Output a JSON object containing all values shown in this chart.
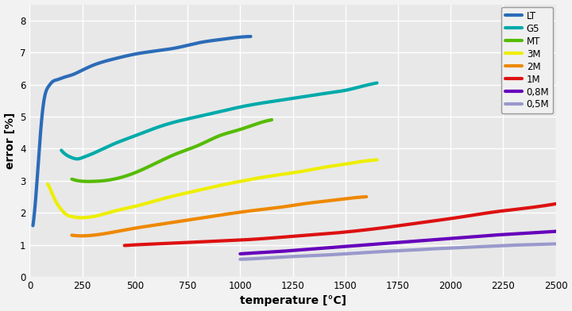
{
  "xlabel": "temperature [°C]",
  "ylabel": "error [%]",
  "xlim": [
    0,
    2500
  ],
  "ylim": [
    0,
    8.5
  ],
  "xticks": [
    0,
    250,
    500,
    750,
    1000,
    1250,
    1500,
    1750,
    2000,
    2250,
    2500
  ],
  "yticks": [
    0,
    1,
    2,
    3,
    4,
    5,
    6,
    7,
    8
  ],
  "plot_bg": "#e8e8e8",
  "fig_bg": "#f2f2f2",
  "grid_color": "#ffffff",
  "series": [
    {
      "label": "LT",
      "color": "#2B6CB8",
      "linewidth": 3.0,
      "x": [
        15,
        25,
        40,
        55,
        70,
        90,
        110,
        130,
        150,
        175,
        200,
        250,
        300,
        400,
        500,
        600,
        700,
        800,
        900,
        1000,
        1050
      ],
      "y": [
        1.6,
        2.2,
        3.5,
        4.8,
        5.6,
        5.95,
        6.1,
        6.15,
        6.2,
        6.25,
        6.3,
        6.45,
        6.6,
        6.8,
        6.95,
        7.05,
        7.15,
        7.3,
        7.4,
        7.48,
        7.5
      ]
    },
    {
      "label": "G5",
      "color": "#00AAAA",
      "linewidth": 3.0,
      "x": [
        150,
        175,
        200,
        225,
        250,
        300,
        400,
        500,
        600,
        700,
        800,
        900,
        1000,
        1100,
        1200,
        1300,
        1400,
        1500,
        1600,
        1650
      ],
      "y": [
        3.95,
        3.8,
        3.72,
        3.68,
        3.72,
        3.85,
        4.15,
        4.4,
        4.65,
        4.85,
        5.0,
        5.15,
        5.3,
        5.42,
        5.52,
        5.62,
        5.72,
        5.82,
        5.98,
        6.05
      ]
    },
    {
      "label": "MT",
      "color": "#55BB00",
      "linewidth": 3.0,
      "x": [
        200,
        230,
        260,
        300,
        350,
        400,
        500,
        600,
        700,
        800,
        900,
        1000,
        1100,
        1150
      ],
      "y": [
        3.05,
        3.0,
        2.98,
        2.98,
        3.0,
        3.05,
        3.25,
        3.55,
        3.85,
        4.1,
        4.4,
        4.6,
        4.82,
        4.9
      ]
    },
    {
      "label": "3M",
      "color": "#EEEE00",
      "linewidth": 3.0,
      "x": [
        85,
        100,
        120,
        150,
        180,
        200,
        230,
        260,
        300,
        400,
        500,
        600,
        700,
        800,
        900,
        1000,
        1100,
        1200,
        1300,
        1400,
        1500,
        1600,
        1650
      ],
      "y": [
        2.9,
        2.7,
        2.4,
        2.1,
        1.92,
        1.88,
        1.85,
        1.85,
        1.88,
        2.05,
        2.2,
        2.38,
        2.55,
        2.7,
        2.85,
        2.98,
        3.1,
        3.2,
        3.3,
        3.42,
        3.52,
        3.62,
        3.65
      ]
    },
    {
      "label": "2M",
      "color": "#EE8800",
      "linewidth": 3.0,
      "x": [
        200,
        250,
        300,
        400,
        500,
        600,
        700,
        800,
        900,
        1000,
        1100,
        1200,
        1300,
        1400,
        1500,
        1600
      ],
      "y": [
        1.3,
        1.28,
        1.3,
        1.4,
        1.52,
        1.62,
        1.72,
        1.82,
        1.92,
        2.02,
        2.1,
        2.18,
        2.28,
        2.36,
        2.44,
        2.5
      ]
    },
    {
      "label": "1M",
      "color": "#DD1111",
      "linewidth": 3.0,
      "x": [
        450,
        500,
        600,
        700,
        800,
        900,
        1000,
        1100,
        1200,
        1300,
        1400,
        1500,
        1600,
        1700,
        1800,
        1900,
        2000,
        2100,
        2200,
        2300,
        2400,
        2500
      ],
      "y": [
        0.98,
        1.0,
        1.03,
        1.06,
        1.09,
        1.12,
        1.15,
        1.19,
        1.24,
        1.29,
        1.34,
        1.4,
        1.47,
        1.55,
        1.64,
        1.73,
        1.82,
        1.92,
        2.02,
        2.1,
        2.18,
        2.28
      ]
    },
    {
      "label": "0,8M",
      "color": "#6600BB",
      "linewidth": 3.0,
      "x": [
        1000,
        1100,
        1200,
        1300,
        1400,
        1500,
        1600,
        1700,
        1800,
        1900,
        2000,
        2100,
        2200,
        2300,
        2400,
        2500
      ],
      "y": [
        0.72,
        0.76,
        0.8,
        0.85,
        0.9,
        0.95,
        1.0,
        1.05,
        1.1,
        1.15,
        1.2,
        1.25,
        1.3,
        1.34,
        1.38,
        1.42
      ]
    },
    {
      "label": "0,5M",
      "color": "#9999CC",
      "linewidth": 3.0,
      "x": [
        1000,
        1100,
        1200,
        1300,
        1400,
        1500,
        1600,
        1700,
        1800,
        1900,
        2000,
        2100,
        2200,
        2300,
        2400,
        2500
      ],
      "y": [
        0.55,
        0.58,
        0.62,
        0.65,
        0.68,
        0.72,
        0.76,
        0.8,
        0.83,
        0.87,
        0.9,
        0.93,
        0.96,
        0.99,
        1.01,
        1.03
      ]
    }
  ]
}
